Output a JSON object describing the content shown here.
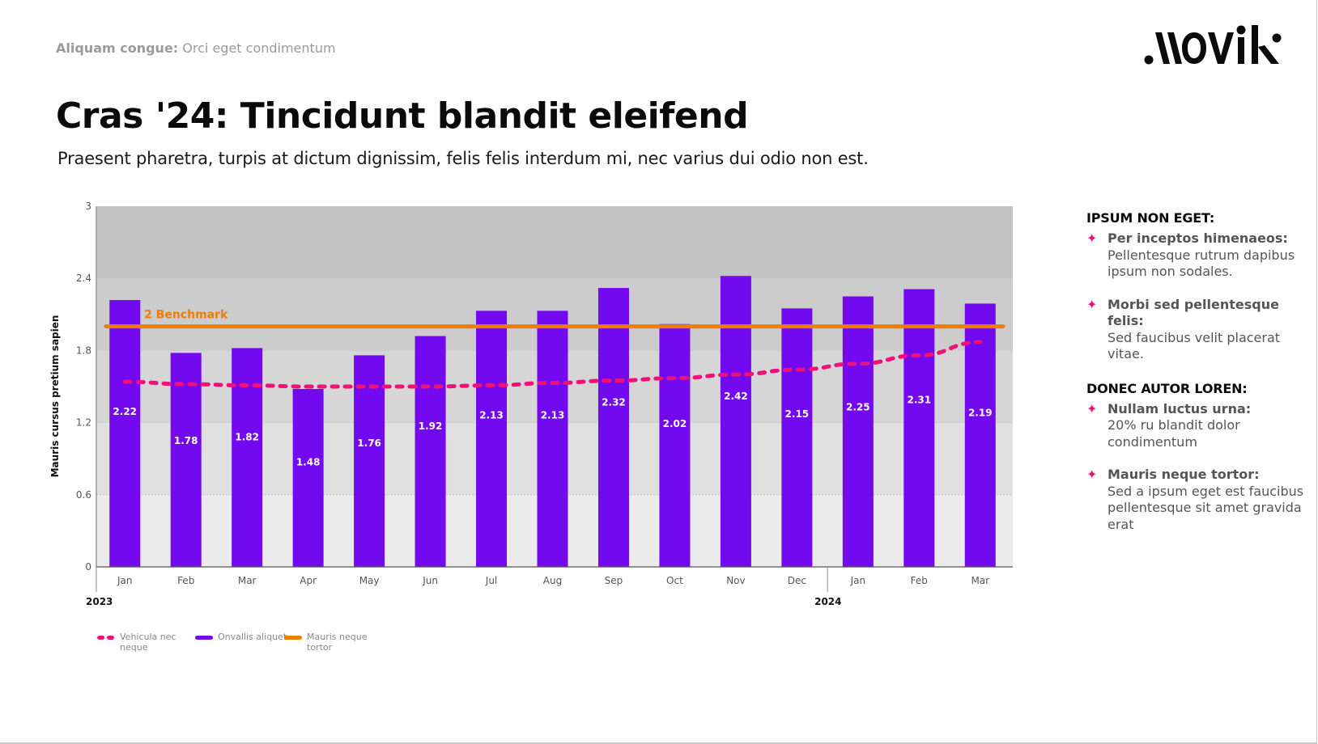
{
  "header": {
    "kicker_bold": "Aliquam congue:",
    "kicker_rest": " Orci eget condimentum",
    "title": "Cras '24: Tincidunt blandit eleifend",
    "subtitle": "Praesent pharetra, turpis at dictum dignissim, felis felis interdum mi, nec varius dui odio non est.",
    "logo_text": "movik"
  },
  "sidebar": {
    "groups": [
      {
        "heading": "IPSUM NON EGET:",
        "items": [
          {
            "bold": "Per inceptos himenaeos:",
            "text": "Pellentesque rutrum dapibus ipsum non sodales."
          },
          {
            "bold": "Morbi sed pellentesque felis:",
            "text": "Sed faucibus velit placerat vitae."
          }
        ]
      },
      {
        "heading": "DONEC AUTOR LOREN:",
        "items": [
          {
            "bold": "Nullam luctus urna:",
            "text": "20% ru blandit dolor condimentum"
          },
          {
            "bold": "Mauris neque tortor:",
            "text": "Sed a ipsum eget est faucibus pellentesque sit amet gravida erat"
          }
        ]
      }
    ],
    "bullet_icon": "four-point-star-icon",
    "bullet_color": "#ee1177"
  },
  "legend": [
    {
      "label": "Vehicula nec neque",
      "style": "dashed",
      "color": "#ee1177"
    },
    {
      "label": "Onvallis aliquet",
      "style": "solid",
      "color": "#7209ef"
    },
    {
      "label": "Mauris neque tortor",
      "style": "solid",
      "color": "#f07c00"
    }
  ],
  "chart_data": {
    "type": "bar",
    "title": "",
    "xlabel": "",
    "ylabel": "Mauris cursus pretium sapien",
    "ylim": [
      0,
      3
    ],
    "yticks": [
      "0",
      "0.6",
      "1.2",
      "1.8",
      "2.4",
      "3"
    ],
    "ytick_values": [
      0,
      0.6,
      1.2,
      1.8,
      2.4,
      3
    ],
    "grid": true,
    "legend_position": "bottom-left",
    "categories": [
      "Jan",
      "Feb",
      "Mar",
      "Apr",
      "May",
      "Jun",
      "Jul",
      "Aug",
      "Sep",
      "Oct",
      "Nov",
      "Dec",
      "Jan",
      "Feb",
      "Mar"
    ],
    "year_groups": [
      {
        "label": "2023",
        "start_index": 0
      },
      {
        "label": "2024",
        "start_index": 12
      }
    ],
    "series": [
      {
        "name": "Onvallis aliquet",
        "type": "bar",
        "color": "#7209ef",
        "values": [
          2.22,
          1.78,
          1.82,
          1.48,
          1.76,
          1.92,
          2.13,
          2.13,
          2.32,
          2.02,
          2.42,
          2.15,
          2.25,
          2.31,
          2.19
        ],
        "labels": [
          "2.22",
          "1.78",
          "1.82",
          "1.48",
          "1.76",
          "1.92",
          "2.13",
          "2.13",
          "2.32",
          "2.02",
          "2.42",
          "2.15",
          "2.25",
          "2.31",
          "2.19"
        ],
        "label_values_position": [
          1.29,
          1.05,
          1.08,
          0.87,
          1.03,
          1.17,
          1.26,
          1.26,
          1.37,
          1.19,
          1.42,
          1.27,
          1.33,
          1.39,
          1.28
        ]
      },
      {
        "name": "Vehicula nec neque",
        "type": "line",
        "style": "dashed",
        "color": "#ee1177",
        "values": [
          1.54,
          1.52,
          1.51,
          1.5,
          1.5,
          1.5,
          1.51,
          1.53,
          1.55,
          1.57,
          1.6,
          1.64,
          1.69,
          1.76,
          1.87
        ]
      },
      {
        "name": "Mauris neque tortor",
        "type": "hline",
        "color": "#f07c00",
        "value": 2,
        "annotation": "2 Benchmark"
      }
    ],
    "background_bands": [
      {
        "from": 0,
        "to": 0.6,
        "color": "#ebebeb"
      },
      {
        "from": 0.6,
        "to": 1.2,
        "color": "#e0e0e0"
      },
      {
        "from": 1.2,
        "to": 1.8,
        "color": "#d6d6d6"
      },
      {
        "from": 1.8,
        "to": 2.4,
        "color": "#cccccc"
      },
      {
        "from": 2.4,
        "to": 3,
        "color": "#c3c3c3"
      }
    ]
  }
}
